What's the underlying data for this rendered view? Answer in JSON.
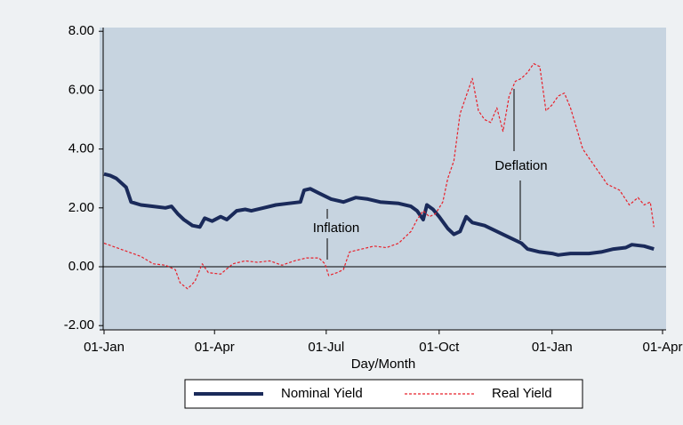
{
  "chart_data": {
    "type": "line",
    "x_label": "Day/Month",
    "annotations": [
      "Inflation",
      "Deflation"
    ],
    "xlim": [
      0,
      455
    ],
    "xticks": [
      {
        "value": 0,
        "label": "01-Jan"
      },
      {
        "value": 90,
        "label": "01-Apr"
      },
      {
        "value": 181,
        "label": "01-Jul"
      },
      {
        "value": 273,
        "label": "01-Oct"
      },
      {
        "value": 365,
        "label": "01-Jan"
      },
      {
        "value": 455,
        "label": "01-Apr"
      }
    ],
    "ylim": [
      -2,
      8
    ],
    "yticks": [
      {
        "value": -2,
        "label": "-2.00"
      },
      {
        "value": 0,
        "label": "0.00"
      },
      {
        "value": 2,
        "label": "2.00"
      },
      {
        "value": 4,
        "label": "4.00"
      },
      {
        "value": 6,
        "label": "6.00"
      },
      {
        "value": 8,
        "label": "8.00"
      }
    ],
    "series": [
      {
        "name": "Nominal Yield",
        "color": "#1a2a5a",
        "x": [
          0,
          5,
          10,
          18,
          22,
          30,
          40,
          50,
          55,
          60,
          65,
          72,
          78,
          82,
          88,
          95,
          100,
          108,
          115,
          120,
          130,
          140,
          150,
          160,
          163,
          168,
          175,
          185,
          195,
          205,
          215,
          225,
          240,
          250,
          255,
          260,
          263,
          268,
          273,
          280,
          285,
          290,
          295,
          300,
          310,
          320,
          330,
          340,
          345,
          355,
          365,
          370,
          380,
          395,
          405,
          415,
          425,
          430,
          440,
          448
        ],
        "values": [
          3.15,
          3.1,
          3.0,
          2.7,
          2.2,
          2.1,
          2.05,
          2.0,
          2.05,
          1.8,
          1.6,
          1.4,
          1.35,
          1.65,
          1.55,
          1.7,
          1.6,
          1.9,
          1.95,
          1.9,
          2.0,
          2.1,
          2.15,
          2.2,
          2.6,
          2.65,
          2.5,
          2.3,
          2.2,
          2.35,
          2.3,
          2.2,
          2.15,
          2.05,
          1.9,
          1.6,
          2.1,
          1.95,
          1.7,
          1.3,
          1.1,
          1.2,
          1.7,
          1.5,
          1.4,
          1.2,
          1.0,
          0.8,
          0.6,
          0.5,
          0.45,
          0.4,
          0.45,
          0.45,
          0.5,
          0.6,
          0.65,
          0.75,
          0.7,
          0.6
        ]
      },
      {
        "name": "Real Yield",
        "color": "#e8202a",
        "x": [
          0,
          10,
          20,
          30,
          40,
          50,
          58,
          62,
          68,
          74,
          80,
          85,
          95,
          105,
          115,
          125,
          135,
          145,
          155,
          165,
          175,
          180,
          183,
          190,
          195,
          200,
          210,
          220,
          230,
          240,
          250,
          255,
          260,
          265,
          270,
          276,
          280,
          285,
          290,
          295,
          300,
          305,
          310,
          315,
          320,
          325,
          330,
          335,
          340,
          345,
          350,
          355,
          360,
          365,
          370,
          375,
          380,
          390,
          400,
          410,
          420,
          428,
          435,
          440,
          445,
          448
        ],
        "values": [
          0.8,
          0.65,
          0.5,
          0.35,
          0.1,
          0.05,
          -0.1,
          -0.55,
          -0.75,
          -0.5,
          0.1,
          -0.2,
          -0.25,
          0.1,
          0.2,
          0.15,
          0.2,
          0.05,
          0.2,
          0.3,
          0.3,
          0.1,
          -0.3,
          -0.2,
          -0.1,
          0.5,
          0.6,
          0.7,
          0.65,
          0.8,
          1.2,
          1.6,
          1.9,
          1.7,
          1.8,
          2.2,
          3.0,
          3.6,
          5.2,
          5.8,
          6.4,
          5.3,
          5.0,
          4.9,
          5.4,
          4.6,
          5.8,
          6.3,
          6.4,
          6.6,
          6.9,
          6.8,
          5.3,
          5.5,
          5.8,
          5.9,
          5.4,
          4.0,
          3.4,
          2.8,
          2.6,
          2.1,
          2.35,
          2.1,
          2.2,
          1.35
        ]
      }
    ]
  }
}
